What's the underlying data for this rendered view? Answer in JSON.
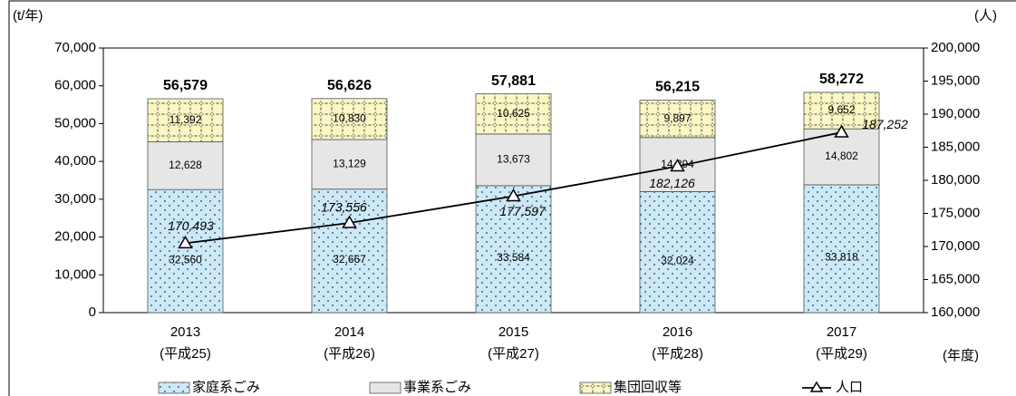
{
  "chart_data": {
    "type": "stacked_bar_line",
    "ylabel": "(t/年)",
    "y2label": "(人)",
    "xlabel": "(年度)",
    "categories": [
      "2013",
      "2014",
      "2015",
      "2016",
      "2017"
    ],
    "category_sublabels": [
      "(平成25)",
      "(平成26)",
      "(平成27)",
      "(平成28)",
      "(平成29)"
    ],
    "series": [
      {
        "name": "家庭系ごみ",
        "color": "#cce9f8",
        "values": [
          32560,
          32667,
          33584,
          32024,
          33818
        ],
        "value_labels": [
          "32,560",
          "32,667",
          "33,584",
          "32,024",
          "33,818"
        ]
      },
      {
        "name": "事業系ごみ",
        "color": "#e6e6e6",
        "values": [
          12628,
          13129,
          13673,
          14294,
          14802
        ],
        "value_labels": [
          "12,628",
          "13,129",
          "13,673",
          "14,294",
          "14,802"
        ]
      },
      {
        "name": "集団回収等",
        "color": "#faf7c4",
        "values": [
          11392,
          10830,
          10625,
          9897,
          9652
        ],
        "value_labels": [
          "11,392",
          "10,830",
          "10,625",
          "9,897",
          "9,652"
        ]
      },
      {
        "name": "人口",
        "color": "#000000",
        "axis": "y2",
        "type": "line",
        "values": [
          170493,
          173556,
          177597,
          182126,
          187252
        ],
        "value_labels": [
          "170,493",
          "173,556",
          "177,597",
          "182,126",
          "187,252"
        ]
      }
    ],
    "totals": [
      56579,
      56626,
      57881,
      56215,
      58272
    ],
    "total_labels": [
      "56,579",
      "56,626",
      "57,881",
      "56,215",
      "58,272"
    ],
    "ylim": [
      0,
      70000
    ],
    "yticks": [
      0,
      {
        "value": 10000,
        "label": "10,000"
      },
      {
        "value": 20000,
        "label": "20,000"
      },
      {
        "value": 30000,
        "label": "30,000"
      },
      {
        "value": 40000,
        "label": "40,000"
      },
      {
        "value": 50000,
        "label": "50,000"
      },
      {
        "value": 60000,
        "label": "60,000"
      },
      {
        "value": 70000,
        "label": "70,000"
      }
    ],
    "y2lim": [
      160000,
      200000
    ],
    "y2ticks": [
      {
        "value": 160000,
        "label": "160,000"
      },
      {
        "value": 165000,
        "label": "165,000"
      },
      {
        "value": 170000,
        "label": "170,000"
      },
      {
        "value": 175000,
        "label": "175,000"
      },
      {
        "value": 180000,
        "label": "180,000"
      },
      {
        "value": 185000,
        "label": "185,000"
      },
      {
        "value": 190000,
        "label": "190,000"
      },
      {
        "value": 195000,
        "label": "195,000"
      },
      {
        "value": 200000,
        "label": "200,000"
      }
    ],
    "grid": false,
    "legend": "bottom"
  }
}
